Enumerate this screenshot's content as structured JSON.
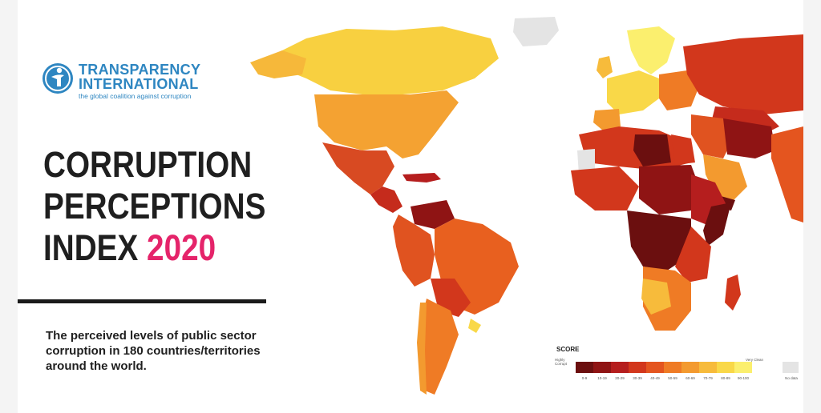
{
  "logo": {
    "line1": "TRANSPARENCY",
    "line2": "INTERNATIONAL",
    "tagline": "the global coalition against corruption"
  },
  "title": {
    "line1": "CORRUPTION",
    "line2": "PERCEPTIONS",
    "line3_prefix": "INDEX",
    "year": "2020"
  },
  "subtitle": "The perceived levels of public sector corruption in 180 countries/territories around the world.",
  "legend": {
    "title": "SCORE",
    "low_label": "Highly Corrupt",
    "high_label": "Very Clean",
    "ranges": [
      "0-9",
      "10-19",
      "20-29",
      "30-39",
      "40-49",
      "50-59",
      "60-69",
      "70-79",
      "80-89",
      "90-100"
    ],
    "colors": [
      "#6b0f0f",
      "#8f1414",
      "#b51e1e",
      "#d2371c",
      "#e4551f",
      "#ef7b25",
      "#f39a2f",
      "#f7bb3b",
      "#f9d848",
      "#fbef6e"
    ],
    "no_data_label": "No data",
    "no_data_color": "#e4e4e4"
  },
  "colors": {
    "accent_year": "#e5246a",
    "brand_blue": "#2e86c1",
    "title_text": "#1f1f1f"
  }
}
